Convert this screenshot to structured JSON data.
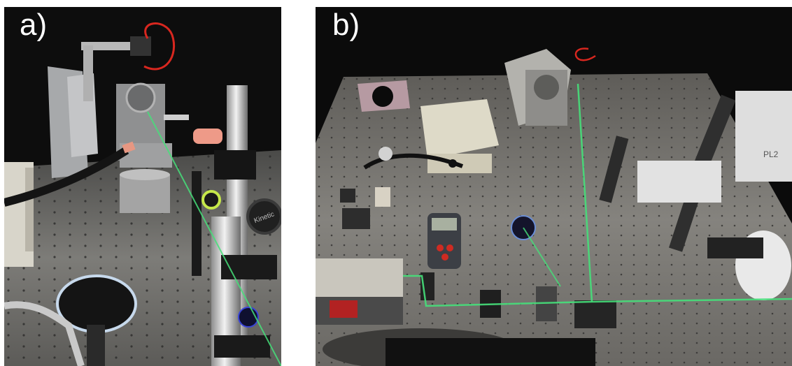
{
  "figure": {
    "panels": [
      {
        "label": "a)",
        "subject": "photo of optical setup close-up"
      },
      {
        "label": "b)",
        "subject": "photo of optical table overview"
      }
    ]
  },
  "objects": {
    "panel_a": {
      "stand_text": "Kinetic"
    },
    "panel_b": {
      "device_text": "PL2"
    }
  },
  "colors": {
    "background_dark": "#0b0b0b",
    "table_metal": "#6f6f6c",
    "laser_beam": "#46e07a",
    "label_text": "#ffffff"
  }
}
